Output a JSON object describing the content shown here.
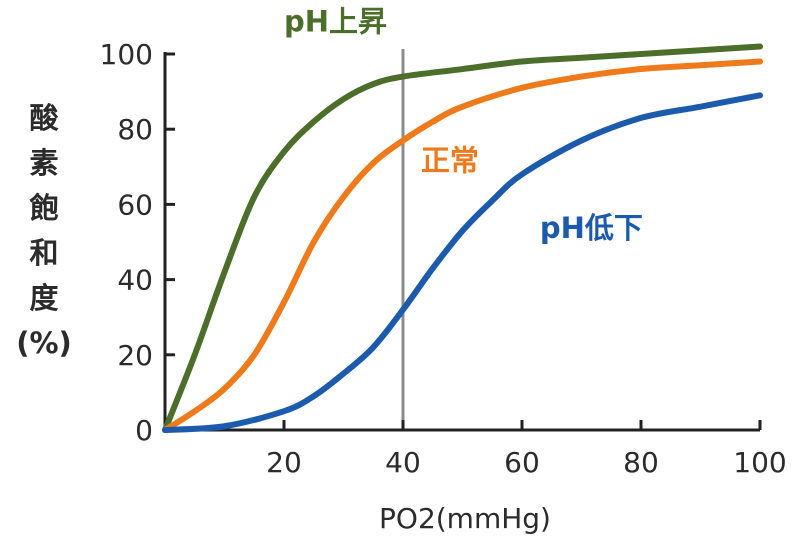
{
  "chart_data": {
    "type": "line",
    "xlabel": "PO2(mmHg)",
    "ylabel_chars": [
      "酸",
      "素",
      "飽",
      "和",
      "度",
      "(%)"
    ],
    "xlim": [
      0,
      100
    ],
    "ylim": [
      0,
      100
    ],
    "xticks": [
      20,
      40,
      60,
      80,
      100
    ],
    "yticks": [
      0,
      20,
      40,
      60,
      80,
      100
    ],
    "reference_line_x": 40,
    "series": [
      {
        "name": "pH上昇",
        "color": "#4c6e2b",
        "points": [
          [
            0,
            0
          ],
          [
            5,
            20
          ],
          [
            10,
            42
          ],
          [
            15,
            62
          ],
          [
            20,
            74
          ],
          [
            25,
            82
          ],
          [
            30,
            88
          ],
          [
            35,
            92
          ],
          [
            40,
            94
          ],
          [
            50,
            96
          ],
          [
            60,
            98
          ],
          [
            70,
            99
          ],
          [
            80,
            100
          ],
          [
            90,
            101
          ],
          [
            100,
            102
          ]
        ]
      },
      {
        "name": "正常",
        "color": "#ee7a1c",
        "points": [
          [
            0,
            0
          ],
          [
            5,
            5
          ],
          [
            10,
            11
          ],
          [
            15,
            20
          ],
          [
            20,
            34
          ],
          [
            25,
            50
          ],
          [
            30,
            62
          ],
          [
            35,
            71
          ],
          [
            40,
            77
          ],
          [
            45,
            82
          ],
          [
            50,
            86
          ],
          [
            60,
            91
          ],
          [
            70,
            94
          ],
          [
            80,
            96
          ],
          [
            90,
            97
          ],
          [
            100,
            98
          ]
        ]
      },
      {
        "name": "pH低下",
        "color": "#1c5aac",
        "points": [
          [
            0,
            0
          ],
          [
            10,
            1
          ],
          [
            20,
            5
          ],
          [
            25,
            9
          ],
          [
            30,
            15
          ],
          [
            35,
            22
          ],
          [
            40,
            32
          ],
          [
            45,
            43
          ],
          [
            50,
            53
          ],
          [
            55,
            61
          ],
          [
            60,
            68
          ],
          [
            70,
            77
          ],
          [
            80,
            83
          ],
          [
            90,
            86
          ],
          [
            100,
            89
          ]
        ]
      }
    ],
    "labels": [
      {
        "text": "pH上昇",
        "x": 20,
        "y": 106
      },
      {
        "text": "正常",
        "x": 43,
        "y": 69
      },
      {
        "text": "pH低下",
        "x": 63,
        "y": 51
      }
    ]
  }
}
